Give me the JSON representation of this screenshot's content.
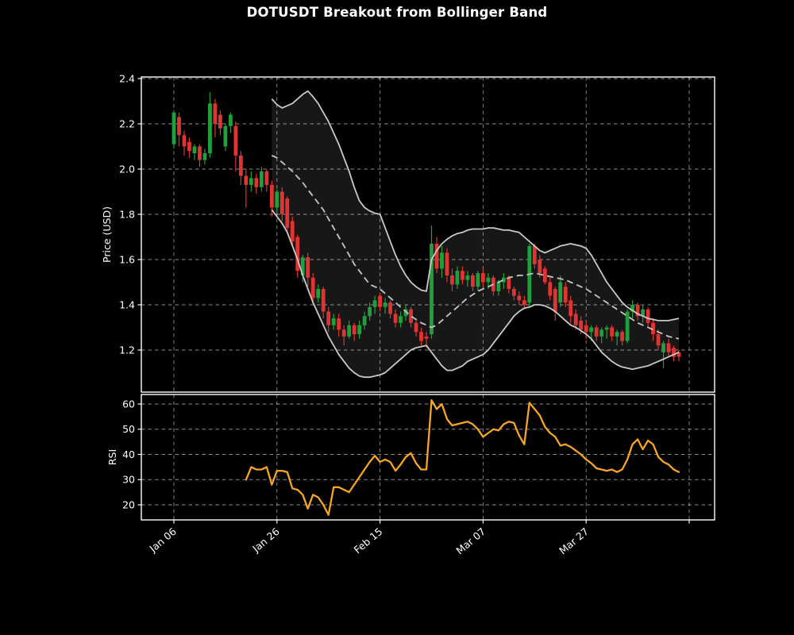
{
  "title": "DOTUSDT Breakout from Bollinger Band",
  "colors": {
    "background": "#000000",
    "up_candle": "#1fa03c",
    "down_candle": "#df3431",
    "bollinger_band_line": "#c9c9c9",
    "bollinger_middle_line": "#bfbfbf",
    "band_fill": "rgba(255,255,255,0.09)",
    "rsi_line": "#f6a623",
    "grid": "rgba(255,255,255,0.55)",
    "axis": "#ffffff",
    "text": "#ffffff"
  },
  "chart_data": [
    {
      "type": "candlestick",
      "title": "DOTUSDT Breakout from Bollinger Band",
      "ylabel": "Price (USD)",
      "ylim": [
        1.01,
        2.41
      ],
      "yticks": [
        2.4,
        2.2,
        2.0,
        1.8,
        1.6,
        1.4,
        1.2
      ],
      "ytick_labels": [
        "2.4",
        "2.2",
        "2.0",
        "1.8",
        "1.6",
        "1.4",
        "1.2"
      ],
      "grid": true,
      "legend": false,
      "x_tick_positions": [
        0,
        20,
        40,
        60,
        80,
        100
      ],
      "x_tick_labels": [
        "Jan 06",
        "Jan 26",
        "Feb 15",
        "Mar 07",
        "Mar 27",
        ""
      ],
      "dates": [
        "Jan 06",
        "Jan 07",
        "Jan 08",
        "Jan 09",
        "Jan 10",
        "Jan 11",
        "Jan 12",
        "Jan 13",
        "Jan 14",
        "Jan 15",
        "Jan 16",
        "Jan 17",
        "Jan 18",
        "Jan 19",
        "Jan 20",
        "Jan 21",
        "Jan 22",
        "Jan 23",
        "Jan 24",
        "Jan 25",
        "Jan 26",
        "Jan 27",
        "Jan 28",
        "Jan 29",
        "Jan 30",
        "Jan 31",
        "Feb 01",
        "Feb 02",
        "Feb 03",
        "Feb 04",
        "Feb 05",
        "Feb 06",
        "Feb 07",
        "Feb 08",
        "Feb 09",
        "Feb 10",
        "Feb 11",
        "Feb 12",
        "Feb 13",
        "Feb 14",
        "Feb 15",
        "Feb 16",
        "Feb 17",
        "Feb 18",
        "Feb 19",
        "Feb 20",
        "Feb 21",
        "Feb 22",
        "Feb 23",
        "Feb 24",
        "Feb 25",
        "Feb 26",
        "Feb 27",
        "Feb 28",
        "Mar 01",
        "Mar 02",
        "Mar 03",
        "Mar 04",
        "Mar 05",
        "Mar 06",
        "Mar 07",
        "Mar 08",
        "Mar 09",
        "Mar 10",
        "Mar 11",
        "Mar 12",
        "Mar 13",
        "Mar 14",
        "Mar 15",
        "Mar 16",
        "Mar 17",
        "Mar 18",
        "Mar 19",
        "Mar 20",
        "Mar 21",
        "Mar 22",
        "Mar 23",
        "Mar 24",
        "Mar 25",
        "Mar 26",
        "Mar 27",
        "Mar 28",
        "Mar 29",
        "Mar 30",
        "Mar 31",
        "Apr 01",
        "Apr 02",
        "Apr 03",
        "Apr 04",
        "Apr 05",
        "Apr 06",
        "Apr 07",
        "Apr 08",
        "Apr 09",
        "Apr 10",
        "Apr 11",
        "Apr 12",
        "Apr 13",
        "Apr 14"
      ],
      "open": [
        2.11,
        2.23,
        2.15,
        2.12,
        2.07,
        2.1,
        2.04,
        2.07,
        2.29,
        2.24,
        2.1,
        2.19,
        2.19,
        2.06,
        1.97,
        1.93,
        1.96,
        1.92,
        1.99,
        1.93,
        1.83,
        1.9,
        1.87,
        1.77,
        1.7,
        1.53,
        1.61,
        1.52,
        1.43,
        1.47,
        1.37,
        1.31,
        1.34,
        1.29,
        1.26,
        1.31,
        1.27,
        1.31,
        1.35,
        1.39,
        1.44,
        1.39,
        1.41,
        1.36,
        1.32,
        1.35,
        1.38,
        1.32,
        1.28,
        1.26,
        1.27,
        1.67,
        1.56,
        1.63,
        1.53,
        1.49,
        1.55,
        1.51,
        1.53,
        1.48,
        1.54,
        1.5,
        1.52,
        1.46,
        1.5,
        1.52,
        1.47,
        1.44,
        1.42,
        1.41,
        1.66,
        1.6,
        1.56,
        1.5,
        1.47,
        1.41,
        1.48,
        1.42,
        1.36,
        1.33,
        1.31,
        1.28,
        1.3,
        1.26,
        1.29,
        1.3,
        1.26,
        1.28,
        1.24,
        1.37,
        1.4,
        1.35,
        1.38,
        1.32,
        1.27,
        1.19,
        1.23,
        1.21,
        1.19
      ],
      "high": [
        2.26,
        2.25,
        2.17,
        2.14,
        2.11,
        2.11,
        2.09,
        2.34,
        2.31,
        2.26,
        2.2,
        2.25,
        2.21,
        2.08,
        2.0,
        1.99,
        1.98,
        2.01,
        2.0,
        1.95,
        1.91,
        1.92,
        1.88,
        1.79,
        1.71,
        1.62,
        1.63,
        1.54,
        1.49,
        1.48,
        1.39,
        1.36,
        1.36,
        1.31,
        1.33,
        1.32,
        1.33,
        1.37,
        1.41,
        1.44,
        1.45,
        1.43,
        1.42,
        1.38,
        1.37,
        1.4,
        1.39,
        1.33,
        1.3,
        1.28,
        1.75,
        1.7,
        1.66,
        1.65,
        1.56,
        1.57,
        1.57,
        1.55,
        1.54,
        1.55,
        1.56,
        1.54,
        1.53,
        1.51,
        1.54,
        1.53,
        1.48,
        1.46,
        1.44,
        1.67,
        1.67,
        1.62,
        1.57,
        1.52,
        1.48,
        1.53,
        1.5,
        1.44,
        1.38,
        1.35,
        1.33,
        1.31,
        1.31,
        1.3,
        1.31,
        1.31,
        1.29,
        1.29,
        1.38,
        1.42,
        1.41,
        1.4,
        1.39,
        1.34,
        1.29,
        1.24,
        1.25,
        1.22,
        1.2
      ],
      "low": [
        2.09,
        2.1,
        2.06,
        2.05,
        2.04,
        2.01,
        2.02,
        2.05,
        2.14,
        2.15,
        2.08,
        2.16,
        1.99,
        1.93,
        1.83,
        1.9,
        1.89,
        1.9,
        1.9,
        1.79,
        1.81,
        1.77,
        1.72,
        1.66,
        1.52,
        1.5,
        1.48,
        1.4,
        1.41,
        1.34,
        1.28,
        1.29,
        1.26,
        1.22,
        1.25,
        1.24,
        1.25,
        1.29,
        1.33,
        1.36,
        1.37,
        1.36,
        1.34,
        1.3,
        1.3,
        1.33,
        1.3,
        1.26,
        1.22,
        1.21,
        1.25,
        1.54,
        1.52,
        1.5,
        1.46,
        1.47,
        1.49,
        1.48,
        1.46,
        1.46,
        1.48,
        1.47,
        1.44,
        1.44,
        1.47,
        1.45,
        1.42,
        1.4,
        1.38,
        1.39,
        1.56,
        1.52,
        1.49,
        1.42,
        1.33,
        1.39,
        1.39,
        1.32,
        1.29,
        1.27,
        1.25,
        1.24,
        1.24,
        1.23,
        1.25,
        1.24,
        1.22,
        1.22,
        1.23,
        1.34,
        1.33,
        1.32,
        1.3,
        1.24,
        1.2,
        1.12,
        1.17,
        1.15,
        1.15
      ],
      "close": [
        2.25,
        2.15,
        2.1,
        2.08,
        2.1,
        2.04,
        2.07,
        2.29,
        2.2,
        2.18,
        2.19,
        2.24,
        2.06,
        1.97,
        1.93,
        1.96,
        1.92,
        1.99,
        1.93,
        1.83,
        1.9,
        1.8,
        1.74,
        1.68,
        1.55,
        1.61,
        1.52,
        1.43,
        1.47,
        1.37,
        1.31,
        1.34,
        1.29,
        1.26,
        1.31,
        1.27,
        1.31,
        1.35,
        1.39,
        1.42,
        1.39,
        1.41,
        1.36,
        1.32,
        1.35,
        1.38,
        1.32,
        1.28,
        1.24,
        1.25,
        1.67,
        1.56,
        1.63,
        1.53,
        1.49,
        1.55,
        1.51,
        1.53,
        1.48,
        1.54,
        1.5,
        1.52,
        1.46,
        1.5,
        1.52,
        1.47,
        1.44,
        1.42,
        1.4,
        1.66,
        1.58,
        1.54,
        1.5,
        1.44,
        1.37,
        1.5,
        1.41,
        1.35,
        1.31,
        1.29,
        1.28,
        1.3,
        1.26,
        1.29,
        1.3,
        1.26,
        1.28,
        1.24,
        1.37,
        1.4,
        1.35,
        1.38,
        1.32,
        1.27,
        1.22,
        1.23,
        1.19,
        1.17,
        1.17
      ],
      "bollinger_upper": [
        null,
        null,
        null,
        null,
        null,
        null,
        null,
        null,
        null,
        null,
        null,
        null,
        null,
        null,
        null,
        null,
        null,
        null,
        null,
        2.31,
        2.285,
        2.27,
        2.28,
        2.29,
        2.31,
        2.33,
        2.345,
        2.32,
        2.29,
        2.25,
        2.21,
        2.16,
        2.11,
        2.05,
        1.99,
        1.92,
        1.86,
        1.83,
        1.815,
        1.805,
        1.8,
        1.74,
        1.68,
        1.62,
        1.57,
        1.53,
        1.5,
        1.48,
        1.465,
        1.46,
        1.6,
        1.64,
        1.67,
        1.69,
        1.705,
        1.715,
        1.72,
        1.73,
        1.735,
        1.735,
        1.735,
        1.74,
        1.74,
        1.735,
        1.73,
        1.73,
        1.725,
        1.72,
        1.7,
        1.68,
        1.66,
        1.64,
        1.63,
        1.64,
        1.65,
        1.66,
        1.665,
        1.67,
        1.665,
        1.66,
        1.65,
        1.62,
        1.58,
        1.54,
        1.5,
        1.47,
        1.44,
        1.41,
        1.39,
        1.375,
        1.36,
        1.35,
        1.34,
        1.335,
        1.33,
        1.33,
        1.33,
        1.335,
        1.34
      ],
      "bollinger_middle": [
        null,
        null,
        null,
        null,
        null,
        null,
        null,
        null,
        null,
        null,
        null,
        null,
        null,
        null,
        null,
        null,
        null,
        null,
        null,
        2.06,
        2.05,
        2.03,
        2.01,
        1.99,
        1.965,
        1.94,
        1.91,
        1.88,
        1.85,
        1.82,
        1.78,
        1.74,
        1.7,
        1.66,
        1.62,
        1.58,
        1.55,
        1.52,
        1.49,
        1.48,
        1.47,
        1.45,
        1.43,
        1.41,
        1.39,
        1.37,
        1.35,
        1.335,
        1.32,
        1.31,
        1.3,
        1.31,
        1.33,
        1.35,
        1.37,
        1.39,
        1.41,
        1.43,
        1.445,
        1.46,
        1.47,
        1.48,
        1.49,
        1.5,
        1.51,
        1.52,
        1.525,
        1.53,
        1.53,
        1.535,
        1.54,
        1.535,
        1.53,
        1.525,
        1.52,
        1.515,
        1.51,
        1.5,
        1.49,
        1.48,
        1.47,
        1.455,
        1.44,
        1.425,
        1.41,
        1.395,
        1.38,
        1.365,
        1.35,
        1.335,
        1.32,
        1.31,
        1.3,
        1.29,
        1.28,
        1.27,
        1.26,
        1.255,
        1.25
      ],
      "bollinger_lower": [
        null,
        null,
        null,
        null,
        null,
        null,
        null,
        null,
        null,
        null,
        null,
        null,
        null,
        null,
        null,
        null,
        null,
        null,
        null,
        1.82,
        1.79,
        1.76,
        1.72,
        1.66,
        1.6,
        1.53,
        1.47,
        1.41,
        1.36,
        1.31,
        1.26,
        1.22,
        1.18,
        1.15,
        1.12,
        1.1,
        1.085,
        1.08,
        1.08,
        1.085,
        1.09,
        1.1,
        1.12,
        1.14,
        1.16,
        1.18,
        1.2,
        1.21,
        1.215,
        1.22,
        1.19,
        1.16,
        1.13,
        1.11,
        1.11,
        1.12,
        1.13,
        1.15,
        1.16,
        1.17,
        1.18,
        1.2,
        1.23,
        1.26,
        1.29,
        1.32,
        1.35,
        1.37,
        1.385,
        1.39,
        1.4,
        1.4,
        1.395,
        1.385,
        1.37,
        1.35,
        1.33,
        1.31,
        1.3,
        1.285,
        1.27,
        1.25,
        1.22,
        1.19,
        1.17,
        1.15,
        1.135,
        1.125,
        1.12,
        1.115,
        1.12,
        1.125,
        1.13,
        1.14,
        1.15,
        1.16,
        1.17,
        1.18,
        1.19
      ]
    },
    {
      "type": "line",
      "ylabel": "RSI",
      "ylim": [
        14,
        64
      ],
      "yticks": [
        60,
        50,
        40,
        30,
        20
      ],
      "ytick_labels": [
        "60",
        "50",
        "40",
        "30",
        "20"
      ],
      "grid": true,
      "values": [
        null,
        null,
        null,
        null,
        null,
        null,
        null,
        null,
        null,
        null,
        null,
        null,
        null,
        null,
        30,
        35,
        34,
        34,
        35,
        28,
        33.5,
        33.5,
        33,
        26.5,
        26,
        24,
        18.5,
        24,
        23,
        20,
        16,
        27,
        27,
        26,
        25,
        28,
        31,
        34,
        37,
        39.5,
        37,
        38,
        37,
        33.5,
        36,
        39,
        40.5,
        36.5,
        34,
        34,
        61.5,
        58,
        60,
        54,
        51.5,
        52,
        52.5,
        53,
        52,
        50,
        47,
        48.5,
        50,
        49.5,
        52,
        53,
        52.5,
        47.5,
        44,
        60.5,
        58,
        55.5,
        51,
        48.5,
        47,
        43.5,
        44,
        43,
        41.5,
        40,
        38,
        36.5,
        34.5,
        34,
        33.5,
        34,
        33,
        34,
        38,
        44,
        46,
        42,
        45.5,
        44,
        39,
        37,
        36,
        34,
        33
      ]
    }
  ]
}
